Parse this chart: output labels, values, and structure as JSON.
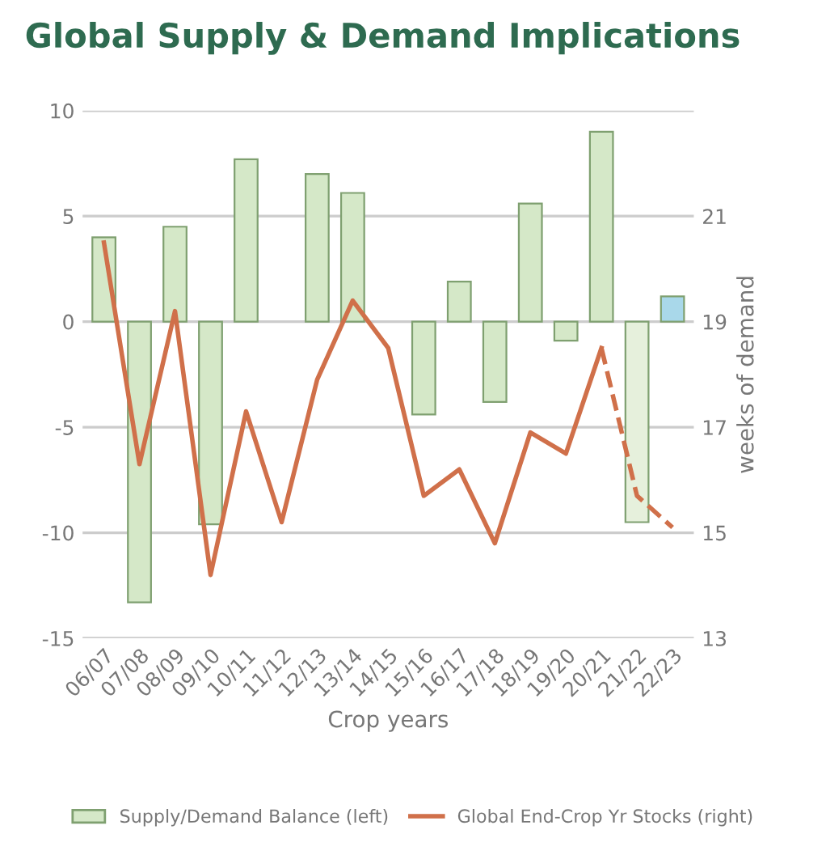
{
  "chart_data": {
    "type": "bar",
    "title": "Global Supply & Demand Implications",
    "xlabel": "Crop years",
    "y2label": "weeks of demand",
    "categories": [
      "06/07",
      "07/08",
      "08/09",
      "09/10",
      "10/11",
      "11/12",
      "12/13",
      "13/14",
      "14/15",
      "15/16",
      "16/17",
      "17/18",
      "18/19",
      "19/20",
      "20/21",
      "21/22",
      "22/23"
    ],
    "series": [
      {
        "name": "Supply/Demand Balance (left)",
        "color": "#d5e8c8",
        "colors": [
          "#d5e8c8",
          "#d5e8c8",
          "#d5e8c8",
          "#d5e8c8",
          "#d5e8c8",
          "#d5e8c8",
          "#d5e8c8",
          "#d5e8c8",
          "#d5e8c8",
          "#d5e8c8",
          "#d5e8c8",
          "#d5e8c8",
          "#d5e8c8",
          "#d5e8c8",
          "#d5e8c8",
          "#e6f0dc",
          "#a9d8ea"
        ],
        "values": [
          4.0,
          -13.3,
          4.5,
          -9.6,
          7.7,
          null,
          7.0,
          6.1,
          null,
          -4.4,
          1.9,
          -3.8,
          5.6,
          -0.9,
          9.0,
          -9.5,
          1.2
        ]
      },
      {
        "name": "Global End-Crop Yr Stocks (right)",
        "type": "line",
        "axis": "y2",
        "color": "#d0704a",
        "line_style": "solid",
        "values": [
          20.5,
          16.3,
          19.2,
          14.2,
          17.3,
          15.2,
          17.9,
          19.4,
          18.5,
          15.7,
          16.2,
          14.8,
          16.9,
          16.5,
          18.5,
          null,
          null
        ]
      },
      {
        "type": "line",
        "axis": "y2",
        "color": "#d0704a",
        "line_style": "dashed",
        "values": [
          null,
          null,
          null,
          null,
          null,
          null,
          null,
          null,
          null,
          null,
          null,
          null,
          null,
          null,
          18.5,
          15.7,
          15.1
        ]
      }
    ],
    "ylim": [
      -15,
      10
    ],
    "yticks": [
      -15,
      -10,
      -5,
      0,
      5,
      10
    ],
    "y2lim": [
      13,
      23
    ],
    "y2ticks": [
      13,
      15,
      17,
      19,
      21
    ],
    "grid": "y",
    "legend": "bottom"
  }
}
